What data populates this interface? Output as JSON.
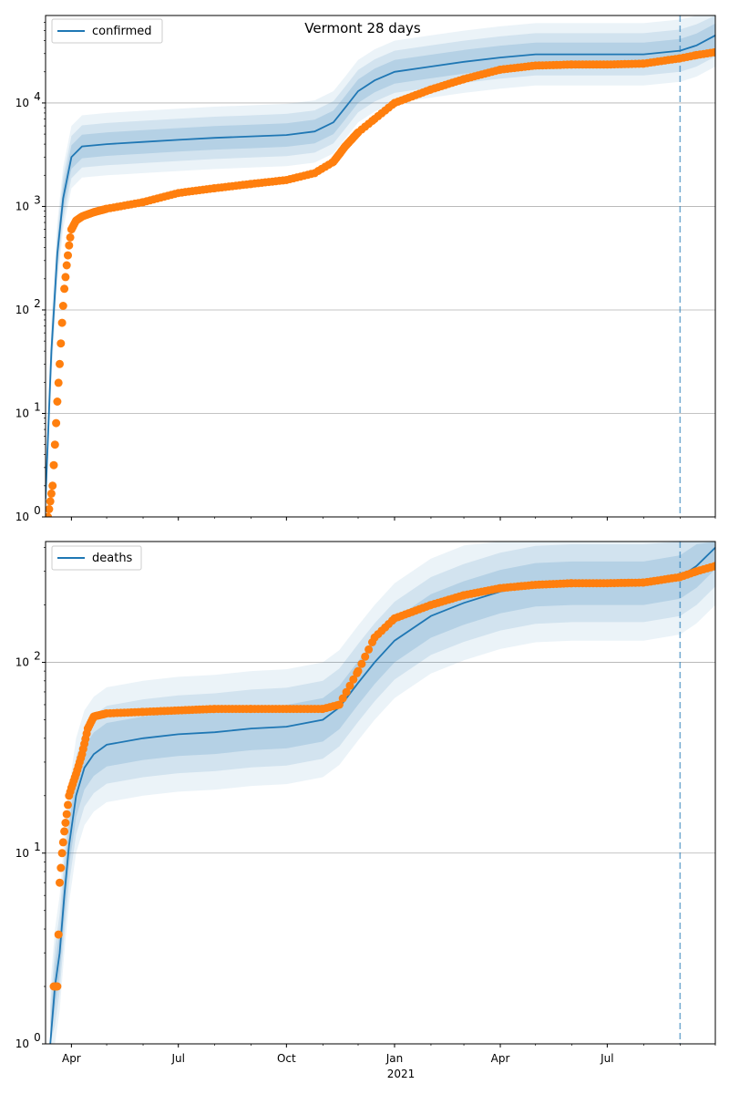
{
  "colors": {
    "model": "#1f77b4",
    "observed": "#ff7f0e",
    "band_inner": "#1f77b4",
    "grid": "#b0b0b0",
    "forecast_line": "#1f77b4"
  },
  "chart_data": [
    {
      "type": "line",
      "title": "Vermont 28 days",
      "legend": "top-left",
      "grid": "y-major",
      "yscale": "log",
      "ylim": [
        1,
        70000
      ],
      "xlim": [
        "2020-03-10",
        "2021-10-01"
      ],
      "forecast_start": "2021-09-01",
      "x_ticks_major": [
        "Apr",
        "Jul",
        "Oct",
        "Jan",
        "Apr",
        "Jul"
      ],
      "x_tick_dates": [
        "2020-04-01",
        "2020-07-01",
        "2020-10-01",
        "2021-01-01",
        "2021-04-01",
        "2021-07-01"
      ],
      "year_label": "2021",
      "y_ticks": [
        "10",
        "10",
        "10",
        "10",
        "10"
      ],
      "y_tick_exponents": [
        "0",
        "1",
        "2",
        "3",
        "4"
      ],
      "y_tick_values": [
        1,
        10,
        100,
        1000,
        10000
      ],
      "series": [
        {
          "name": "confirmed",
          "kind": "model",
          "x": [
            "2020-03-10",
            "2020-03-15",
            "2020-03-20",
            "2020-03-25",
            "2020-04-01",
            "2020-04-10",
            "2020-05-01",
            "2020-06-01",
            "2020-07-01",
            "2020-08-01",
            "2020-09-01",
            "2020-10-01",
            "2020-10-25",
            "2020-11-10",
            "2020-11-20",
            "2020-12-01",
            "2020-12-15",
            "2021-01-01",
            "2021-02-01",
            "2021-03-01",
            "2021-04-01",
            "2021-05-01",
            "2021-06-01",
            "2021-07-01",
            "2021-08-01",
            "2021-09-01",
            "2021-09-15",
            "2021-10-01"
          ],
          "values": [
            1.5,
            40,
            350,
            1200,
            3000,
            3800,
            4000,
            4200,
            4400,
            4600,
            4750,
            4900,
            5300,
            6500,
            9000,
            13000,
            16500,
            20000,
            22500,
            25000,
            27500,
            29500,
            29500,
            29500,
            29500,
            32000,
            36000,
            45000
          ]
        },
        {
          "name": "",
          "kind": "observed",
          "x": [
            "2020-03-12",
            "2020-03-16",
            "2020-03-18",
            "2020-03-20",
            "2020-03-22",
            "2020-03-24",
            "2020-03-26",
            "2020-03-28",
            "2020-03-30",
            "2020-04-01",
            "2020-04-05",
            "2020-04-10",
            "2020-04-20",
            "2020-05-01",
            "2020-06-01",
            "2020-07-01",
            "2020-08-01",
            "2020-09-01",
            "2020-10-01",
            "2020-10-25",
            "2020-11-10",
            "2020-11-20",
            "2020-12-01",
            "2020-12-15",
            "2021-01-01",
            "2021-02-01",
            "2021-03-01",
            "2021-04-01",
            "2021-05-01",
            "2021-06-01",
            "2021-07-01",
            "2021-08-01",
            "2021-09-01",
            "2021-09-15",
            "2021-10-01"
          ],
          "values": [
            1,
            2,
            5,
            13,
            30,
            75,
            160,
            270,
            420,
            600,
            730,
            800,
            880,
            950,
            1100,
            1350,
            1500,
            1650,
            1800,
            2100,
            2700,
            3800,
            5200,
            7000,
            10000,
            13500,
            17000,
            21000,
            23000,
            23500,
            23500,
            24000,
            27000,
            29000,
            31000
          ]
        }
      ]
    },
    {
      "type": "line",
      "title": "",
      "legend": "top-left",
      "grid": "y-major",
      "yscale": "log",
      "ylim": [
        1,
        430
      ],
      "xlim": [
        "2020-03-10",
        "2021-10-01"
      ],
      "forecast_start": "2021-09-01",
      "x_ticks_major": [
        "Apr",
        "Jul",
        "Oct",
        "Jan",
        "Apr",
        "Jul"
      ],
      "x_tick_dates": [
        "2020-04-01",
        "2020-07-01",
        "2020-10-01",
        "2021-01-01",
        "2021-04-01",
        "2021-07-01"
      ],
      "year_label": "2021",
      "y_ticks": [
        "10",
        "10",
        "10"
      ],
      "y_tick_exponents": [
        "0",
        "1",
        "2"
      ],
      "y_tick_values": [
        1,
        10,
        100
      ],
      "series": [
        {
          "name": "deaths",
          "kind": "model",
          "x": [
            "2020-03-14",
            "2020-03-18",
            "2020-03-22",
            "2020-03-26",
            "2020-03-30",
            "2020-04-05",
            "2020-04-12",
            "2020-04-20",
            "2020-05-01",
            "2020-06-01",
            "2020-07-01",
            "2020-08-01",
            "2020-09-01",
            "2020-10-01",
            "2020-11-01",
            "2020-11-15",
            "2020-12-01",
            "2020-12-15",
            "2021-01-01",
            "2021-02-01",
            "2021-03-01",
            "2021-04-01",
            "2021-05-01",
            "2021-06-01",
            "2021-07-01",
            "2021-08-01",
            "2021-09-01",
            "2021-09-15",
            "2021-10-01"
          ],
          "values": [
            1,
            2,
            3,
            6,
            11,
            20,
            28,
            33,
            37,
            40,
            42,
            43,
            45,
            46,
            50,
            58,
            78,
            100,
            130,
            175,
            205,
            235,
            255,
            260,
            260,
            260,
            280,
            320,
            400
          ]
        },
        {
          "name": "",
          "kind": "observed",
          "x": [
            "2020-03-17",
            "2020-03-20",
            "2020-03-22",
            "2020-03-24",
            "2020-03-26",
            "2020-03-28",
            "2020-03-30",
            "2020-04-01",
            "2020-04-05",
            "2020-04-10",
            "2020-04-15",
            "2020-04-20",
            "2020-05-01",
            "2020-06-01",
            "2020-07-01",
            "2020-08-01",
            "2020-09-01",
            "2020-10-01",
            "2020-11-01",
            "2020-11-15",
            "2020-12-01",
            "2020-12-15",
            "2021-01-01",
            "2021-02-01",
            "2021-03-01",
            "2021-04-01",
            "2021-05-01",
            "2021-06-01",
            "2021-07-01",
            "2021-08-01",
            "2021-09-01",
            "2021-09-15",
            "2021-10-01"
          ],
          "values": [
            2,
            2,
            7,
            10,
            13,
            16,
            20,
            22,
            26,
            33,
            45,
            52,
            54,
            55,
            56,
            57,
            57,
            57,
            57,
            60,
            90,
            135,
            170,
            200,
            225,
            245,
            255,
            260,
            260,
            262,
            280,
            300,
            320
          ]
        }
      ]
    }
  ]
}
